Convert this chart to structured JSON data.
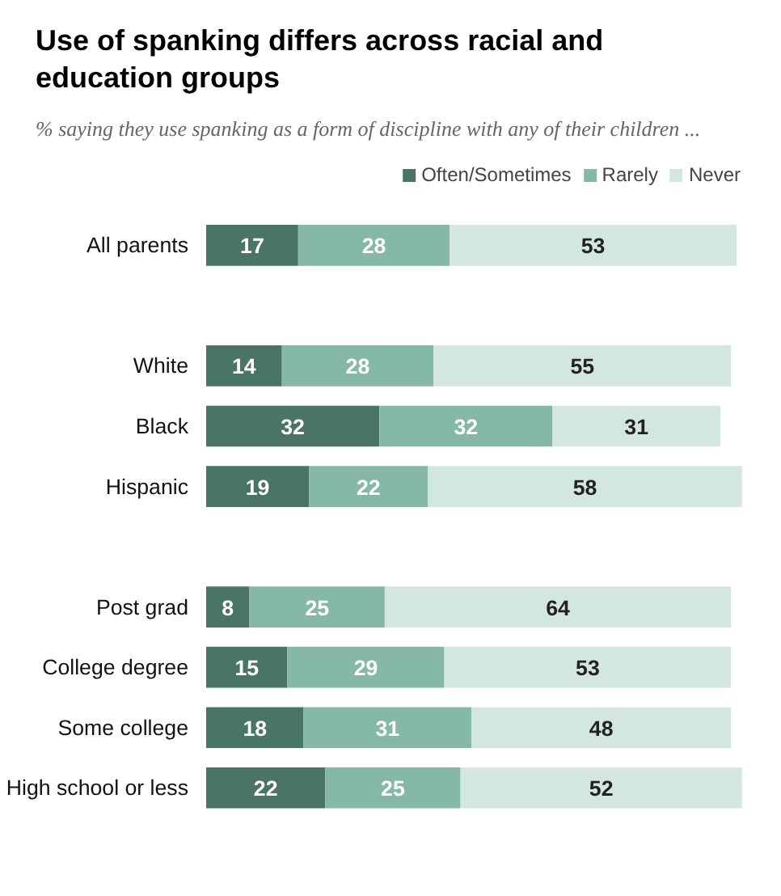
{
  "chart_data": {
    "type": "bar",
    "orientation": "horizontal",
    "stacked": true,
    "data_labels": true,
    "legend": "top right",
    "title": "Use of spanking differs across racial and education groups",
    "subtitle": "% saying they use spanking as a form of discipline with any of their children ...",
    "categories": [
      "All parents",
      null,
      "White",
      "Black",
      "Hispanic",
      null,
      "Post grad",
      "College degree",
      "Some college",
      "High school or less"
    ],
    "series": [
      {
        "name": "Often/Sometimes",
        "color": "#4a7565",
        "values": [
          17,
          null,
          14,
          32,
          19,
          null,
          8,
          15,
          18,
          22
        ]
      },
      {
        "name": "Rarely",
        "color": "#86b8a6",
        "values": [
          28,
          null,
          28,
          32,
          22,
          null,
          25,
          29,
          31,
          25
        ]
      },
      {
        "name": "Never",
        "color": "#d3e6e0",
        "values": [
          53,
          null,
          55,
          31,
          58,
          null,
          64,
          53,
          48,
          52
        ]
      }
    ]
  }
}
